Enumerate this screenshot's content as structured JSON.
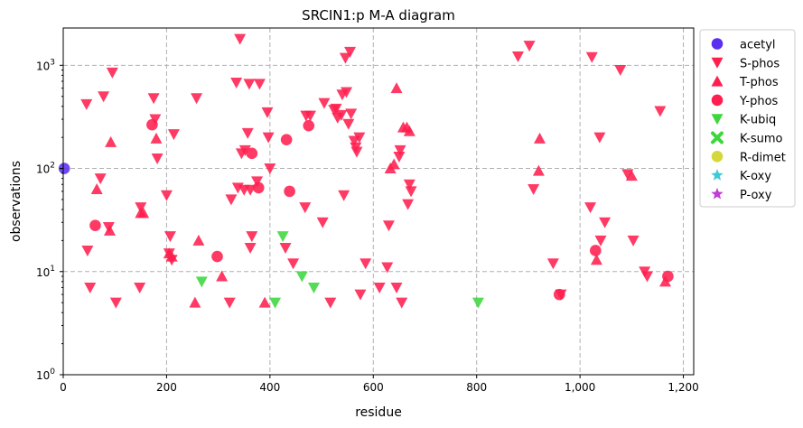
{
  "chart_data": {
    "type": "scatter",
    "title": "SRCIN1:p M-A diagram",
    "xlabel": "residue",
    "ylabel": "observations",
    "xlim": [
      0,
      1220
    ],
    "ylim": [
      1,
      2300
    ],
    "yscale": "log",
    "grid": true,
    "legend_position": "outside-right",
    "x_ticks": [
      {
        "value": 0,
        "label": "0"
      },
      {
        "value": 200,
        "label": "200"
      },
      {
        "value": 400,
        "label": "400"
      },
      {
        "value": 600,
        "label": "600"
      },
      {
        "value": 800,
        "label": "800"
      },
      {
        "value": 1000,
        "label": "1,000"
      },
      {
        "value": 1200,
        "label": "1,200"
      }
    ],
    "y_ticks": [
      {
        "value": 1,
        "base": "10",
        "exp": "0"
      },
      {
        "value": 10,
        "base": "10",
        "exp": "1"
      },
      {
        "value": 100,
        "base": "10",
        "exp": "2"
      },
      {
        "value": 1000,
        "base": "10",
        "exp": "3"
      }
    ],
    "series": [
      {
        "name": "acetyl",
        "marker": "circle",
        "color": "#5a2ff0",
        "points": [
          [
            2,
            100
          ]
        ]
      },
      {
        "name": "S-phos",
        "marker": "triangle-down",
        "color": "#ff1f4f",
        "points": [
          [
            45,
            420
          ],
          [
            47,
            16
          ],
          [
            52,
            7
          ],
          [
            72,
            80
          ],
          [
            78,
            500
          ],
          [
            88,
            27
          ],
          [
            95,
            850
          ],
          [
            102,
            5
          ],
          [
            148,
            7
          ],
          [
            150,
            42
          ],
          [
            175,
            480
          ],
          [
            178,
            300
          ],
          [
            182,
            125
          ],
          [
            200,
            55
          ],
          [
            205,
            15
          ],
          [
            207,
            22
          ],
          [
            210,
            13
          ],
          [
            214,
            215
          ],
          [
            258,
            480
          ],
          [
            322,
            5
          ],
          [
            325,
            50
          ],
          [
            335,
            680
          ],
          [
            338,
            65
          ],
          [
            342,
            1800
          ],
          [
            345,
            140
          ],
          [
            350,
            62
          ],
          [
            352,
            150
          ],
          [
            357,
            220
          ],
          [
            360,
            660
          ],
          [
            362,
            62
          ],
          [
            362,
            17
          ],
          [
            365,
            22
          ],
          [
            375,
            75
          ],
          [
            380,
            660
          ],
          [
            395,
            350
          ],
          [
            397,
            200
          ],
          [
            400,
            100
          ],
          [
            430,
            17
          ],
          [
            445,
            12
          ],
          [
            468,
            42
          ],
          [
            470,
            325
          ],
          [
            478,
            325
          ],
          [
            502,
            30
          ],
          [
            505,
            430
          ],
          [
            517,
            5
          ],
          [
            524,
            370
          ],
          [
            528,
            380
          ],
          [
            531,
            310
          ],
          [
            538,
            330
          ],
          [
            540,
            520
          ],
          [
            543,
            55
          ],
          [
            546,
            1180
          ],
          [
            548,
            550
          ],
          [
            552,
            270
          ],
          [
            555,
            1350
          ],
          [
            557,
            340
          ],
          [
            563,
            185
          ],
          [
            566,
            160
          ],
          [
            568,
            145
          ],
          [
            573,
            200
          ],
          [
            575,
            6
          ],
          [
            585,
            12
          ],
          [
            612,
            7
          ],
          [
            627,
            11
          ],
          [
            630,
            28
          ],
          [
            645,
            7
          ],
          [
            650,
            130
          ],
          [
            652,
            150
          ],
          [
            655,
            5
          ],
          [
            667,
            45
          ],
          [
            670,
            70
          ],
          [
            673,
            60
          ],
          [
            880,
            1220
          ],
          [
            902,
            1550
          ],
          [
            910,
            63
          ],
          [
            948,
            12
          ],
          [
            963,
            6
          ],
          [
            1020,
            42
          ],
          [
            1023,
            1200
          ],
          [
            1038,
            200
          ],
          [
            1040,
            20
          ],
          [
            1048,
            30
          ],
          [
            1078,
            900
          ],
          [
            1092,
            88
          ],
          [
            1103,
            20
          ],
          [
            1125,
            10
          ],
          [
            1130,
            9
          ],
          [
            1155,
            360
          ]
        ]
      },
      {
        "name": "T-phos",
        "marker": "triangle-up",
        "color": "#ff1f4f",
        "points": [
          [
            65,
            63
          ],
          [
            90,
            25
          ],
          [
            92,
            180
          ],
          [
            150,
            37
          ],
          [
            155,
            37
          ],
          [
            180,
            195
          ],
          [
            205,
            15
          ],
          [
            210,
            14
          ],
          [
            255,
            5
          ],
          [
            262,
            20
          ],
          [
            307,
            9
          ],
          [
            390,
            5
          ],
          [
            633,
            100
          ],
          [
            640,
            110
          ],
          [
            645,
            600
          ],
          [
            658,
            250
          ],
          [
            665,
            250
          ],
          [
            670,
            230
          ],
          [
            920,
            95
          ],
          [
            922,
            195
          ],
          [
            1032,
            13
          ],
          [
            1100,
            85
          ],
          [
            1165,
            8
          ]
        ]
      },
      {
        "name": "Y-phos",
        "marker": "circle",
        "color": "#ff1f4f",
        "points": [
          [
            62,
            28
          ],
          [
            172,
            265
          ],
          [
            298,
            14
          ],
          [
            365,
            140
          ],
          [
            378,
            65
          ],
          [
            432,
            190
          ],
          [
            438,
            60
          ],
          [
            475,
            260
          ],
          [
            960,
            6
          ],
          [
            1030,
            16
          ],
          [
            1170,
            9
          ]
        ]
      },
      {
        "name": "K-ubiq",
        "marker": "triangle-down",
        "color": "#3dd63d",
        "points": [
          [
            268,
            8
          ],
          [
            410,
            5
          ],
          [
            425,
            22
          ],
          [
            462,
            9
          ],
          [
            485,
            7
          ],
          [
            803,
            5
          ]
        ]
      },
      {
        "name": "K-sumo",
        "marker": "x",
        "color": "#3dd63d",
        "points": []
      },
      {
        "name": "R-dimet",
        "marker": "circle",
        "color": "#d6d63d",
        "points": []
      },
      {
        "name": "K-oxy",
        "marker": "star",
        "color": "#3dc9d6",
        "points": []
      },
      {
        "name": "P-oxy",
        "marker": "star",
        "color": "#c03dd6",
        "points": []
      }
    ]
  }
}
